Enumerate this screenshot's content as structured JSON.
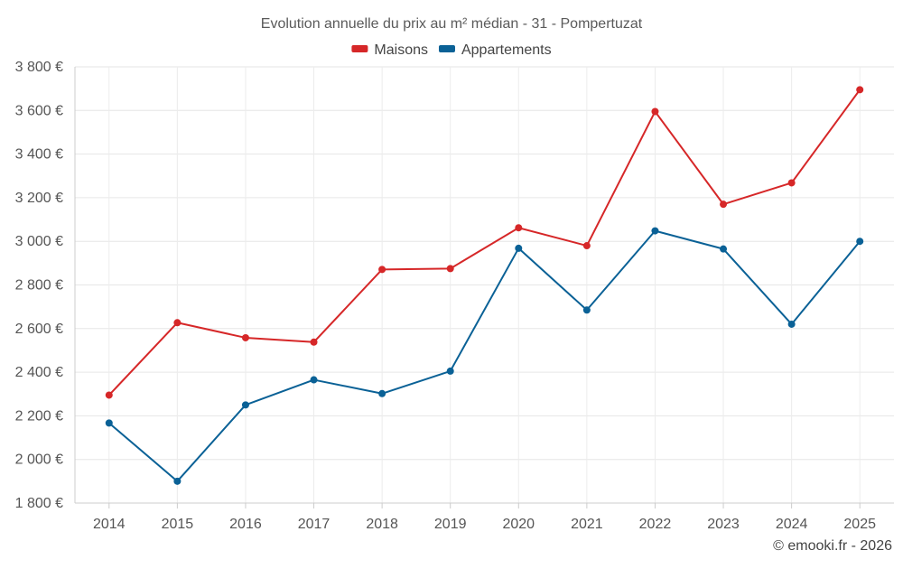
{
  "chart_data": {
    "type": "line",
    "title": "Evolution annuelle du prix au m² médian - 31 - Pompertuzat",
    "xlabel": "",
    "ylabel": "",
    "categories": [
      "2014",
      "2015",
      "2016",
      "2017",
      "2018",
      "2019",
      "2020",
      "2021",
      "2022",
      "2023",
      "2024",
      "2025"
    ],
    "series": [
      {
        "name": "Maisons",
        "color": "#d62728",
        "values": [
          2295,
          2627,
          2558,
          2538,
          2871,
          2875,
          3062,
          2980,
          3595,
          3170,
          3268,
          3695
        ]
      },
      {
        "name": "Appartements",
        "color": "#0a6196",
        "values": [
          2167,
          1900,
          2250,
          2365,
          2302,
          2405,
          2968,
          2685,
          3048,
          2965,
          2620,
          3000
        ]
      }
    ],
    "ylim": [
      1800,
      3800
    ],
    "yticks": [
      1800,
      2000,
      2200,
      2400,
      2600,
      2800,
      3000,
      3200,
      3400,
      3600,
      3800
    ],
    "ytick_labels": [
      "1 800 €",
      "2 000 €",
      "2 200 €",
      "2 400 €",
      "2 600 €",
      "2 800 €",
      "3 000 €",
      "3 200 €",
      "3 400 €",
      "3 600 €",
      "3 800 €"
    ],
    "grid": true,
    "legend_position": "top-center"
  },
  "credit": "© emooki.fr - 2026"
}
